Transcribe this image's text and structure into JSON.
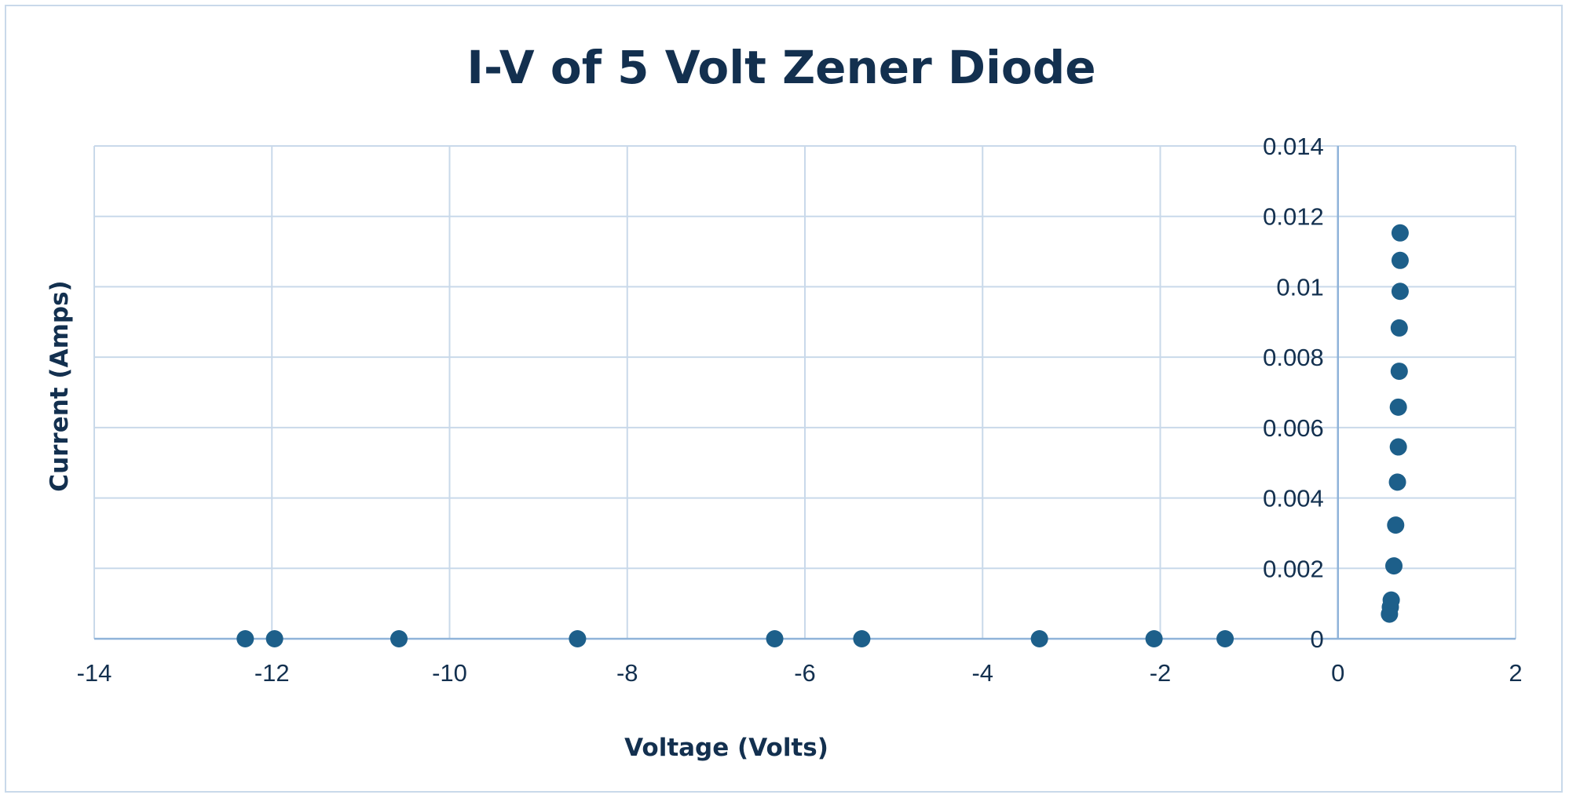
{
  "chart_data": {
    "type": "scatter",
    "title": "I-V of 5 Volt Zener Diode",
    "xlabel": "Voltage (Volts)",
    "ylabel": "Current (Amps)",
    "xlim": [
      -14,
      2
    ],
    "ylim": [
      0,
      0.014
    ],
    "x_ticks": [
      -14,
      -12,
      -10,
      -8,
      -6,
      -4,
      -2,
      0,
      2
    ],
    "x_tick_labels": [
      "-14",
      "-12",
      "-10",
      "-8",
      "-6",
      "-4",
      "-2",
      "0",
      "2"
    ],
    "y_ticks": [
      0,
      0.002,
      0.004,
      0.006,
      0.008,
      0.01,
      0.012,
      0.014
    ],
    "y_tick_labels": [
      "0",
      "0.002",
      "0.004",
      "0.006",
      "0.008",
      "0.01",
      "0.012",
      "0.014"
    ],
    "grid": true,
    "legend": "none",
    "marker_color": "#1d5f8a",
    "grid_color": "#c9d9ea",
    "axis_color": "#8fb3d9",
    "series": [
      {
        "points": [
          {
            "x": -12.3,
            "y": 0
          },
          {
            "x": -11.97,
            "y": 0
          },
          {
            "x": -10.57,
            "y": 0
          },
          {
            "x": -8.56,
            "y": 0
          },
          {
            "x": -6.34,
            "y": 0
          },
          {
            "x": -5.36,
            "y": 0
          },
          {
            "x": -3.36,
            "y": 0
          },
          {
            "x": -2.07,
            "y": 0
          },
          {
            "x": -1.27,
            "y": 0
          },
          {
            "x": 0.58,
            "y": 0.0007
          },
          {
            "x": 0.59,
            "y": 0.0009
          },
          {
            "x": 0.6,
            "y": 0.0011
          },
          {
            "x": 0.63,
            "y": 0.00207
          },
          {
            "x": 0.65,
            "y": 0.00323
          },
          {
            "x": 0.67,
            "y": 0.00445
          },
          {
            "x": 0.68,
            "y": 0.00545
          },
          {
            "x": 0.68,
            "y": 0.00658
          },
          {
            "x": 0.69,
            "y": 0.0076
          },
          {
            "x": 0.69,
            "y": 0.00883
          },
          {
            "x": 0.7,
            "y": 0.00987
          },
          {
            "x": 0.7,
            "y": 0.01075
          },
          {
            "x": 0.7,
            "y": 0.01153
          }
        ]
      }
    ]
  }
}
